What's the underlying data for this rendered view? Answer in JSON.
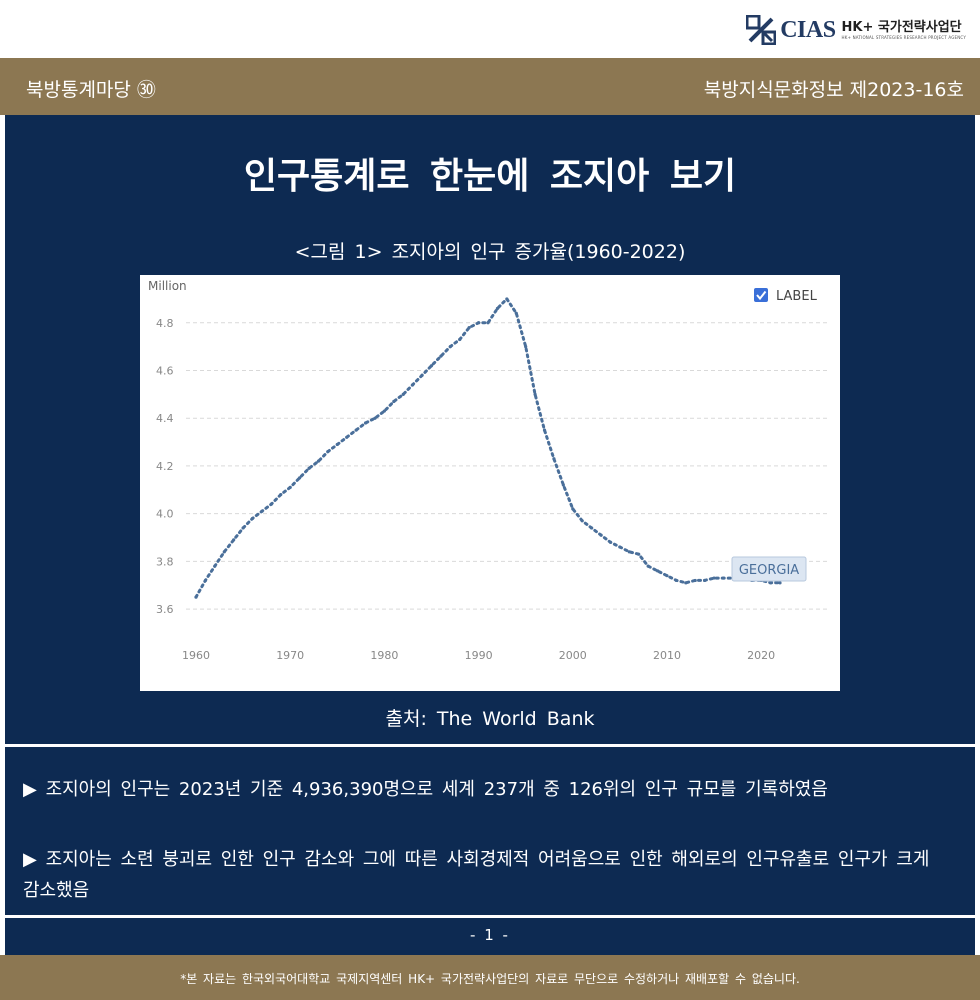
{
  "header": {
    "logo_text": "CIAS",
    "logo_title": "HK+ 국가전략사업단",
    "logo_subtitle": "HK+ NATIONAL STRATEGIES RESEARCH PROJECT AGENCY",
    "series_label": "북방통계마당 ㉚",
    "issue_label": "북방지식문화정보 제2023-16호"
  },
  "main": {
    "title": "인구통계로 한눈에 조지아 보기",
    "figure_caption": "<그림 1> 조지아의 인구 증가율(1960-2022)",
    "source": "출처: The World Bank"
  },
  "bullets": [
    "▶ 조지아의 인구는 2023년 기준 4,936,390명으로 세계 237개 중 126위의 인구 규모를 기록하였음",
    "▶ 조지아는 소련 붕괴로 인한 인구 감소와 그에 따른 사회경제적 어려움으로 인한 해외로의 인구유출로 인구가 크게 감소했음"
  ],
  "page_number": "- 1 -",
  "footer": {
    "notice": "*본 자료는 한국외국어대학교 국제지역센터 HK+ 국가전략사업단의 자료로 무단으로 수정하거나 재배포할 수 없습니다."
  },
  "chart_data": {
    "type": "line",
    "ylabel": "Million",
    "legend_label": "LABEL",
    "legend_checked": true,
    "series_tag": "GEORGIA",
    "xlim": [
      1960,
      2022
    ],
    "ylim": [
      3.6,
      4.9
    ],
    "x_ticks": [
      1960,
      1970,
      1980,
      1990,
      2000,
      2010,
      2020
    ],
    "y_ticks": [
      3.6,
      3.8,
      4.0,
      4.2,
      4.4,
      4.6,
      4.8
    ],
    "grid": true,
    "color": "#4a6f9a",
    "series": [
      {
        "x": [
          1960,
          1961,
          1962,
          1963,
          1964,
          1965,
          1966,
          1967,
          1968,
          1969,
          1970,
          1971,
          1972,
          1973,
          1974,
          1975,
          1976,
          1977,
          1978,
          1979,
          1980,
          1981,
          1982,
          1983,
          1984,
          1985,
          1986,
          1987,
          1988,
          1989,
          1990,
          1991,
          1992,
          1993,
          1994,
          1995,
          1996,
          1997,
          1998,
          1999,
          2000,
          2001,
          2002,
          2003,
          2004,
          2005,
          2006,
          2007,
          2008,
          2009,
          2010,
          2011,
          2012,
          2013,
          2014,
          2015,
          2016,
          2017,
          2018,
          2019,
          2020,
          2021,
          2022
        ],
        "values": [
          3.65,
          3.72,
          3.78,
          3.84,
          3.89,
          3.94,
          3.98,
          4.01,
          4.04,
          4.08,
          4.11,
          4.15,
          4.19,
          4.22,
          4.26,
          4.29,
          4.32,
          4.35,
          4.38,
          4.4,
          4.43,
          4.47,
          4.5,
          4.54,
          4.58,
          4.62,
          4.66,
          4.7,
          4.73,
          4.78,
          4.8,
          4.8,
          4.86,
          4.9,
          4.84,
          4.7,
          4.5,
          4.35,
          4.23,
          4.12,
          4.02,
          3.97,
          3.94,
          3.91,
          3.88,
          3.86,
          3.84,
          3.83,
          3.78,
          3.76,
          3.74,
          3.72,
          3.71,
          3.72,
          3.72,
          3.73,
          3.73,
          3.73,
          3.73,
          3.72,
          3.72,
          3.71,
          3.71
        ]
      }
    ]
  }
}
